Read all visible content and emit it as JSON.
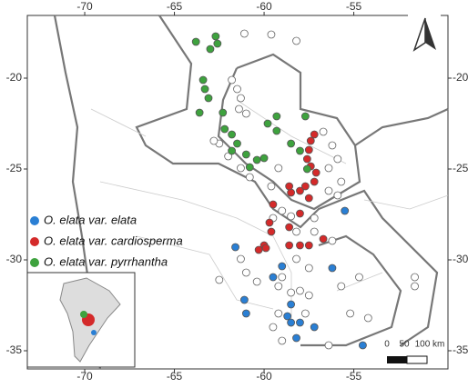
{
  "chart_data": {
    "type": "scatter",
    "xlim": [
      -73.2,
      -49.75
    ],
    "ylim": [
      -36.0,
      -16.55
    ],
    "xticks": [
      -70,
      -65,
      -60,
      -55
    ],
    "yticks": [
      -20,
      -25,
      -30,
      -35
    ],
    "series": [
      {
        "color": "#ffffff",
        "x": [
          -61.1,
          -59.6,
          -58.2,
          -61.8,
          -61.5,
          -61.3,
          -61.4,
          -61.0,
          -62.5,
          -62.8,
          -62.0,
          -61.3,
          -59.2,
          -59.6,
          -60.8,
          -56.7,
          -56.2,
          -55.9,
          -56.4,
          -55.7,
          -56.4,
          -55.9,
          -59.0,
          -58.5,
          -57.2,
          -59.5,
          -58.2,
          -57.2,
          -56.2,
          -58.2,
          -59.0,
          -57.5,
          -59.2,
          -61.3,
          -62.5,
          -58.0,
          -57.5,
          -58.5,
          -59.2,
          -57.7,
          -55.7,
          -54.7,
          -51.6,
          -51.6,
          -59.5,
          -59.0,
          -55.2,
          -54.2,
          -56.4,
          -60.4,
          -61.0
        ],
        "y": [
          -17.55,
          -17.6,
          -17.95,
          -20.1,
          -20.6,
          -21.1,
          -21.7,
          -21.95,
          -23.6,
          -23.45,
          -24.3,
          -24.95,
          -24.95,
          -25.95,
          -25.45,
          -22.95,
          -23.7,
          -24.45,
          -24.95,
          -25.7,
          -26.2,
          -26.45,
          -27.3,
          -27.6,
          -27.7,
          -27.7,
          -28.45,
          -28.45,
          -28.95,
          -29.95,
          -30.95,
          -30.45,
          -31.45,
          -29.95,
          -31.1,
          -31.7,
          -31.95,
          -31.8,
          -32.95,
          -32.95,
          -31.45,
          -30.95,
          -30.95,
          -31.45,
          -33.7,
          -34.45,
          -32.95,
          -33.2,
          -34.7,
          -31.2,
          -30.7
        ]
      },
      {
        "name": "O. elata var. elata",
        "color": "#2a7fd4",
        "x": [
          -61.6,
          -59.0,
          -59.5,
          -61.1,
          -61.0,
          -58.5,
          -58.7,
          -58.5,
          -58.2,
          -58.0,
          -57.2,
          -56.2,
          -55.5,
          -54.5
        ],
        "y": [
          -29.3,
          -30.35,
          -30.95,
          -32.2,
          -32.95,
          -32.45,
          -33.1,
          -33.45,
          -34.3,
          -33.45,
          -33.7,
          -30.45,
          -27.3,
          -34.7
        ]
      },
      {
        "name": "O. elata var. cardiosperma",
        "color": "#d42a2a",
        "x": [
          -57.2,
          -57.4,
          -57.5,
          -57.6,
          -57.4,
          -57.1,
          -57.2,
          -57.7,
          -58.0,
          -58.5,
          -58.6,
          -57.5,
          -59.5,
          -58.0,
          -56.7,
          -57.5,
          -58.0,
          -58.6,
          -59.7,
          -59.6,
          -58.6,
          -60.0,
          -60.3,
          -59.9
        ],
        "y": [
          -23.1,
          -23.45,
          -23.95,
          -24.45,
          -24.85,
          -25.2,
          -25.7,
          -25.95,
          -26.2,
          -26.3,
          -25.95,
          -26.6,
          -26.95,
          -27.45,
          -28.85,
          -29.2,
          -29.2,
          -29.2,
          -27.95,
          -28.45,
          -28.2,
          -29.2,
          -29.45,
          -29.35
        ]
      },
      {
        "name": "O. elata var. pyrrhantha",
        "color": "#3ea23e",
        "x": [
          -62.6,
          -63.0,
          -62.7,
          -63.8,
          -63.4,
          -63.3,
          -63.1,
          -63.6,
          -62.3,
          -62.2,
          -61.8,
          -61.5,
          -61.8,
          -61.0,
          -60.4,
          -60.0,
          -60.8,
          -59.8,
          -59.3,
          -59.3,
          -58.5,
          -58.0,
          -57.7,
          -57.6
        ],
        "y": [
          -18.1,
          -18.4,
          -17.7,
          -18.0,
          -20.1,
          -20.6,
          -21.1,
          -21.9,
          -21.9,
          -22.8,
          -23.1,
          -23.6,
          -24.0,
          -24.2,
          -24.5,
          -24.4,
          -24.9,
          -22.5,
          -22.1,
          -22.9,
          -23.6,
          -24.0,
          -22.1,
          -25.0
        ]
      }
    ],
    "scale_bar": {
      "labels": [
        "0",
        "50",
        "100 km"
      ]
    }
  }
}
